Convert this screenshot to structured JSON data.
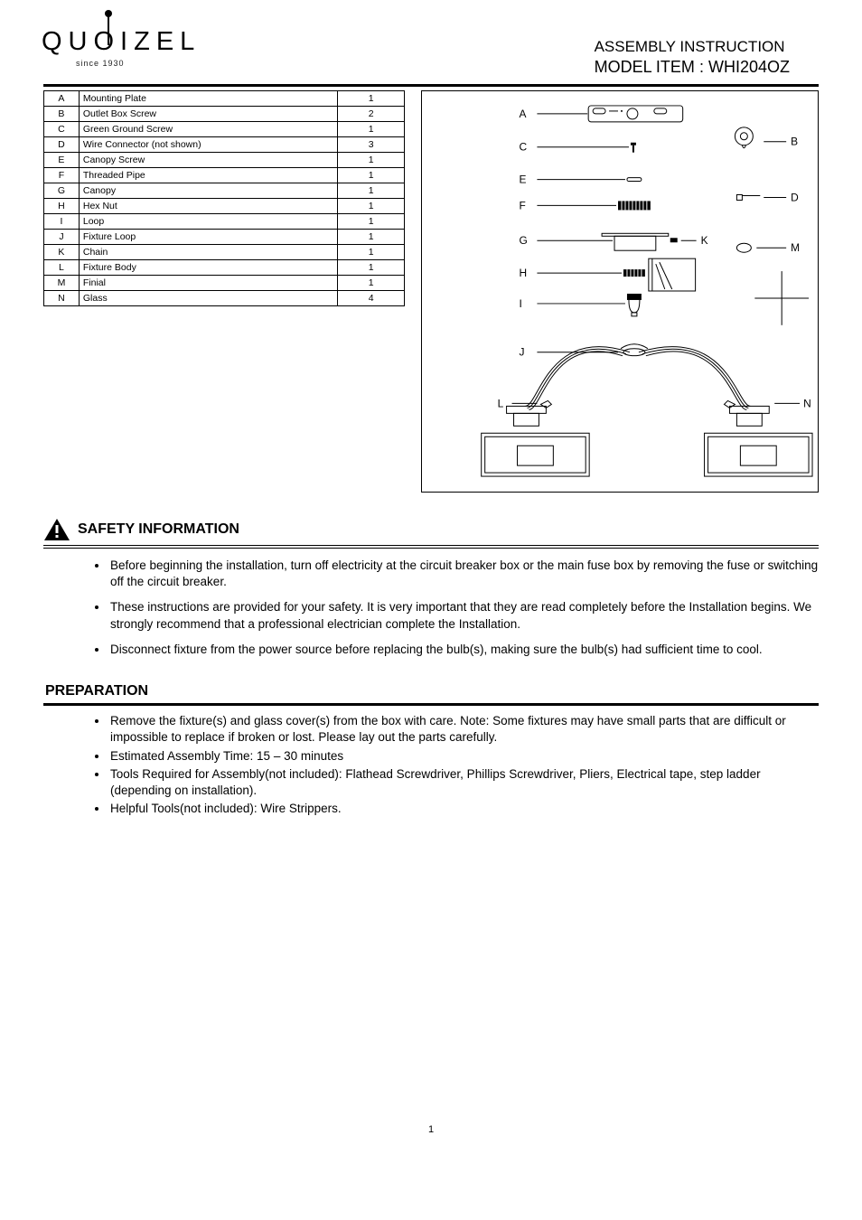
{
  "brand": {
    "name": "QUOIZEL",
    "subtitle": "since 1930"
  },
  "header": {
    "title": "ASSEMBLY INSTRUCTION",
    "model_label": "MODEL ITEM",
    "model_value": "WHI204OZ"
  },
  "parts": [
    {
      "id": "A",
      "desc": "Mounting Plate",
      "qty": "1"
    },
    {
      "id": "B",
      "desc": "Outlet Box Screw",
      "qty": "2"
    },
    {
      "id": "C",
      "desc": "Green Ground Screw",
      "qty": "1"
    },
    {
      "id": "D",
      "desc": "Wire Connector (not shown)",
      "qty": "3"
    },
    {
      "id": "E",
      "desc": "Canopy Screw",
      "qty": "1"
    },
    {
      "id": "F",
      "desc": "Threaded Pipe",
      "qty": "1"
    },
    {
      "id": "G",
      "desc": "Canopy",
      "qty": "1"
    },
    {
      "id": "H",
      "desc": "Hex Nut",
      "qty": "1"
    },
    {
      "id": "I",
      "desc": "Loop",
      "qty": "1"
    },
    {
      "id": "J",
      "desc": "Fixture Loop",
      "qty": "1"
    },
    {
      "id": "K",
      "desc": "Chain",
      "qty": "1"
    },
    {
      "id": "L",
      "desc": "Fixture Body",
      "qty": "1"
    },
    {
      "id": "M",
      "desc": "Finial",
      "qty": "1"
    },
    {
      "id": "N",
      "desc": "Glass",
      "qty": "4"
    }
  ],
  "diagram_labels": {
    "A": "A",
    "B": "B",
    "C": "C",
    "D": "D",
    "E": "E",
    "F": "F",
    "G": "G",
    "H": "H",
    "I": "I",
    "J": "J",
    "K": "K",
    "L": "L",
    "M": "M",
    "N": "N"
  },
  "safety": {
    "heading": "SAFETY INFORMATION",
    "items": [
      "Before beginning the installation, turn off electricity at the circuit breaker box or the main fuse box by removing the fuse or switching off the circuit breaker.",
      "These instructions are provided for your safety. It is very important that they are read completely before the Installation begins. We strongly recommend that a professional electrician complete the Installation.",
      "Disconnect fixture from the power source before replacing the bulb(s), making sure the bulb(s) had sufficient time to cool."
    ]
  },
  "prep": {
    "heading": "PREPARATION",
    "items": [
      "Remove the fixture(s) and glass cover(s) from the box with care. Note: Some fixtures may have small parts that are difficult or impossible to replace if broken or lost. Please lay out the parts carefully.",
      "Estimated Assembly Time: 15 – 30  minutes",
      "Tools Required for Assembly(not included): Flathead  Screwdriver,  Phillips  Screwdriver, Pliers, Electrical tape, step ladder (depending on installation).",
      "Helpful Tools(not included): Wire Strippers."
    ]
  },
  "page_number": "1",
  "colors": {
    "fg": "#000000",
    "bg": "#ffffff"
  }
}
